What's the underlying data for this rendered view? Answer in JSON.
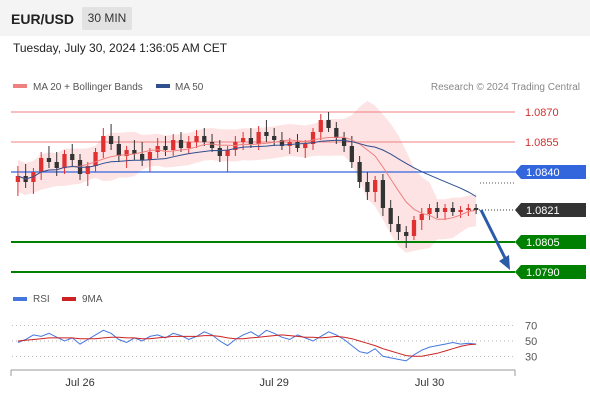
{
  "header": {
    "symbol": "EUR/USD",
    "timeframe": "30 MIN",
    "datetime": "Tuesday, July 30, 2024 1:36:05 AM CET"
  },
  "legend": {
    "ma20_bb": "MA 20 + Bollinger Bands",
    "ma50": "MA 50",
    "credit": "Research © 2024 Trading Central",
    "rsi": "RSI",
    "ma9": "9MA"
  },
  "colors": {
    "ma20": "#f08080",
    "ma50": "#2f4f8f",
    "bb_fill": "#fde3e3",
    "support": "#008000",
    "pivot": "#3366dd",
    "resistance": "#f08080",
    "up_candle": "#e03030",
    "down_candle": "#333333",
    "arrow": "#2a5aa8",
    "rsi_line": "#4477dd",
    "rsi_ma": "#cc2222"
  },
  "chart_data": [
    {
      "type": "candlestick",
      "title": "",
      "ylim": [
        1.0785,
        1.0878
      ],
      "x_ticks": [
        "Jul 26",
        "Jul 29",
        "Jul 30"
      ],
      "levels": [
        {
          "label": "1.0870",
          "value": 1.087,
          "kind": "resistance"
        },
        {
          "label": "1.0855",
          "value": 1.0855,
          "kind": "resistance"
        },
        {
          "label": "1.0840",
          "value": 1.084,
          "kind": "pivot"
        },
        {
          "label": "1.0821",
          "value": 1.0821,
          "kind": "last"
        },
        {
          "label": "1.0805",
          "value": 1.0805,
          "kind": "support"
        },
        {
          "label": "1.0790",
          "value": 1.079,
          "kind": "support"
        }
      ],
      "forecast": {
        "from": 1.0821,
        "to": 1.079,
        "direction": "down"
      },
      "candles": [
        [
          1.0835,
          1.0843,
          1.0828,
          1.0838
        ],
        [
          1.0838,
          1.0844,
          1.0832,
          1.0835
        ],
        [
          1.0835,
          1.0842,
          1.0829,
          1.084
        ],
        [
          1.084,
          1.085,
          1.0836,
          1.0847
        ],
        [
          1.0847,
          1.0853,
          1.0842,
          1.0845
        ],
        [
          1.0845,
          1.085,
          1.0838,
          1.0842
        ],
        [
          1.0842,
          1.0851,
          1.0839,
          1.0849
        ],
        [
          1.0849,
          1.0854,
          1.0843,
          1.0846
        ],
        [
          1.0846,
          1.0849,
          1.0836,
          1.0839
        ],
        [
          1.0839,
          1.0845,
          1.0833,
          1.0843
        ],
        [
          1.0843,
          1.0852,
          1.084,
          1.085
        ],
        [
          1.085,
          1.0862,
          1.0847,
          1.0858
        ],
        [
          1.0858,
          1.0864,
          1.0851,
          1.0854
        ],
        [
          1.0854,
          1.0858,
          1.0845,
          1.0848
        ],
        [
          1.0848,
          1.0853,
          1.0842,
          1.0851
        ],
        [
          1.0851,
          1.0856,
          1.0846,
          1.0849
        ],
        [
          1.0849,
          1.0855,
          1.0843,
          1.0846
        ],
        [
          1.0846,
          1.0852,
          1.084,
          1.085
        ],
        [
          1.085,
          1.0857,
          1.0847,
          1.0853
        ],
        [
          1.0853,
          1.0858,
          1.0848,
          1.0851
        ],
        [
          1.0851,
          1.0859,
          1.0848,
          1.0856
        ],
        [
          1.0856,
          1.086,
          1.085,
          1.0852
        ],
        [
          1.0852,
          1.0858,
          1.0849,
          1.0855
        ],
        [
          1.0855,
          1.0861,
          1.0852,
          1.0858
        ],
        [
          1.0858,
          1.0862,
          1.0853,
          1.0855
        ],
        [
          1.0855,
          1.0859,
          1.085,
          1.0852
        ],
        [
          1.0852,
          1.0856,
          1.0845,
          1.0848
        ],
        [
          1.0848,
          1.0853,
          1.084,
          1.0851
        ],
        [
          1.0851,
          1.0858,
          1.0848,
          1.0855
        ],
        [
          1.0855,
          1.086,
          1.0851,
          1.0857
        ],
        [
          1.0857,
          1.0862,
          1.0852,
          1.0854
        ],
        [
          1.0854,
          1.0863,
          1.0851,
          1.086
        ],
        [
          1.086,
          1.0866,
          1.0855,
          1.0858
        ],
        [
          1.0858,
          1.0862,
          1.0853,
          1.0856
        ],
        [
          1.0856,
          1.086,
          1.0851,
          1.0853
        ],
        [
          1.0853,
          1.0857,
          1.0849,
          1.0855
        ],
        [
          1.0855,
          1.0859,
          1.085,
          1.0852
        ],
        [
          1.0852,
          1.0856,
          1.0847,
          1.0854
        ],
        [
          1.0854,
          1.0862,
          1.0851,
          1.086
        ],
        [
          1.086,
          1.0869,
          1.0856,
          1.0866
        ],
        [
          1.0866,
          1.087,
          1.086,
          1.0862
        ],
        [
          1.0862,
          1.0865,
          1.0854,
          1.0857
        ],
        [
          1.0857,
          1.086,
          1.085,
          1.0853
        ],
        [
          1.0853,
          1.0858,
          1.0842,
          1.0845
        ],
        [
          1.0845,
          1.0848,
          1.0832,
          1.0835
        ],
        [
          1.0835,
          1.084,
          1.0826,
          1.083
        ],
        [
          1.083,
          1.0838,
          1.0825,
          1.0836
        ],
        [
          1.0836,
          1.0839,
          1.0818,
          1.0822
        ],
        [
          1.0822,
          1.0826,
          1.081,
          1.0814
        ],
        [
          1.0814,
          1.0818,
          1.0806,
          1.081
        ],
        [
          1.081,
          1.0813,
          1.0802,
          1.0808
        ],
        [
          1.0808,
          1.0818,
          1.0806,
          1.0816
        ],
        [
          1.0816,
          1.0822,
          1.0811,
          1.0819
        ],
        [
          1.0819,
          1.0824,
          1.0816,
          1.0822
        ],
        [
          1.0822,
          1.0825,
          1.0817,
          1.082
        ],
        [
          1.082,
          1.0824,
          1.0816,
          1.0822
        ],
        [
          1.0822,
          1.0825,
          1.0818,
          1.082
        ],
        [
          1.082,
          1.0823,
          1.0817,
          1.0821
        ],
        [
          1.0821,
          1.0824,
          1.0818,
          1.0822
        ],
        [
          1.0822,
          1.0824,
          1.0819,
          1.0821
        ]
      ]
    },
    {
      "type": "line",
      "title": "",
      "ylim": [
        20,
        80
      ],
      "y_ticks": [
        "70",
        "50",
        "30"
      ],
      "series": [
        {
          "name": "RSI",
          "values": [
            48,
            52,
            58,
            56,
            60,
            55,
            50,
            54,
            46,
            52,
            58,
            64,
            60,
            52,
            48,
            54,
            50,
            56,
            58,
            54,
            60,
            57,
            52,
            56,
            62,
            58,
            50,
            44,
            52,
            58,
            62,
            56,
            64,
            60,
            55,
            52,
            58,
            54,
            50,
            56,
            62,
            58,
            52,
            44,
            36,
            34,
            40,
            30,
            28,
            26,
            24,
            32,
            38,
            42,
            44,
            46,
            48,
            46,
            47,
            46
          ]
        },
        {
          "name": "9MA",
          "values": [
            50,
            51,
            52,
            53,
            54,
            54,
            54,
            54,
            53,
            53,
            53,
            54,
            55,
            55,
            54,
            54,
            53,
            53,
            54,
            55,
            56,
            56,
            56,
            56,
            57,
            57,
            56,
            54,
            53,
            53,
            54,
            55,
            56,
            57,
            58,
            57,
            56,
            55,
            55,
            54,
            55,
            56,
            55,
            53,
            50,
            47,
            44,
            40,
            37,
            34,
            31,
            30,
            30,
            32,
            34,
            37,
            40,
            43,
            45,
            46
          ]
        }
      ]
    }
  ]
}
